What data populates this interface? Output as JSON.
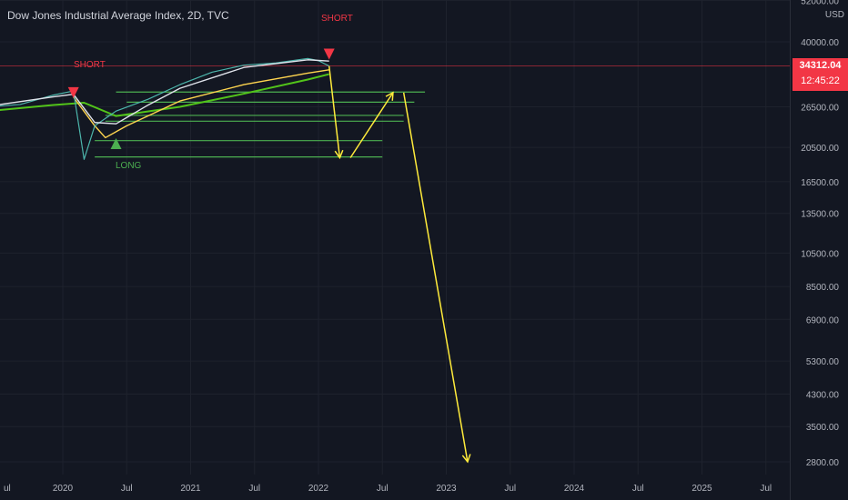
{
  "header": {
    "title": "Dow Jones Industrial Average Index, 2D, TVC"
  },
  "price_axis": {
    "currency": "USD",
    "ticks": [
      "52000.00",
      "40000.00",
      "26500.00",
      "20500.00",
      "16500.00",
      "13500.00",
      "10500.00",
      "8500.00",
      "6900.00",
      "5300.00",
      "4300.00",
      "3500.00",
      "2800.00"
    ]
  },
  "time_axis": {
    "ticks": [
      "ul",
      "2020",
      "Jul",
      "2021",
      "Jul",
      "2022",
      "Jul",
      "2023",
      "Jul",
      "2024",
      "Jul",
      "2025",
      "Jul"
    ]
  },
  "last_price": {
    "value": "34312.04",
    "countdown": "12:45:22"
  },
  "annotations": {
    "short_1": "SHORT",
    "short_2": "SHORT",
    "long_1": "LONG"
  },
  "colors": {
    "background": "#131722",
    "short": "#f23645",
    "long": "#4caf50",
    "forecast_arrows": "#ffeb3b",
    "support_lines": "#4caf50",
    "price_line": "#f23645"
  },
  "chart_data": {
    "type": "line",
    "title": "Dow Jones Industrial Average Index, 2D, TVC",
    "y_scale": "log",
    "ylim": [
      2500,
      56000
    ],
    "x_ticks": [
      "Jul",
      "2020",
      "Jul",
      "2021",
      "Jul",
      "2022",
      "Jul",
      "2023",
      "Jul",
      "2024",
      "Jul",
      "2025",
      "Jul"
    ],
    "price_series": [
      [
        "2019-06",
        26500
      ],
      [
        "2019-09",
        26900
      ],
      [
        "2019-12",
        28500
      ],
      [
        "2020-02",
        29300
      ],
      [
        "2020-03",
        19000
      ],
      [
        "2020-04",
        23500
      ],
      [
        "2020-06",
        25800
      ],
      [
        "2020-09",
        27800
      ],
      [
        "2020-12",
        30500
      ],
      [
        "2021-03",
        33000
      ],
      [
        "2021-06",
        34500
      ],
      [
        "2021-09",
        35000
      ],
      [
        "2021-12",
        36000
      ],
      [
        "2022-01",
        35500
      ],
      [
        "2022-02",
        34312
      ]
    ],
    "ma_white": [
      [
        "2019-06",
        26600
      ],
      [
        "2019-12",
        28200
      ],
      [
        "2020-02",
        28700
      ],
      [
        "2020-04",
        24000
      ],
      [
        "2020-06",
        23800
      ],
      [
        "2020-09",
        26800
      ],
      [
        "2020-12",
        29800
      ],
      [
        "2021-06",
        34000
      ],
      [
        "2021-12",
        35700
      ],
      [
        "2022-02",
        35400
      ]
    ],
    "ma_yellow": [
      [
        "2020-02",
        28200
      ],
      [
        "2020-04",
        23500
      ],
      [
        "2020-05",
        21800
      ],
      [
        "2020-07",
        23500
      ],
      [
        "2020-12",
        27500
      ],
      [
        "2021-06",
        30500
      ],
      [
        "2021-12",
        32800
      ],
      [
        "2022-02",
        33500
      ]
    ],
    "ma_green": [
      [
        "2019-06",
        25800
      ],
      [
        "2019-12",
        26800
      ],
      [
        "2020-03",
        27200
      ],
      [
        "2020-06",
        25000
      ],
      [
        "2020-12",
        26500
      ],
      [
        "2021-06",
        28800
      ],
      [
        "2021-12",
        31500
      ],
      [
        "2022-02",
        32600
      ]
    ],
    "support_levels": [
      {
        "price": 29100,
        "from": "2020-06",
        "to": "2022-11"
      },
      {
        "price": 27300,
        "from": "2020-07",
        "to": "2022-10"
      },
      {
        "price": 25100,
        "from": "2020-05",
        "to": "2022-09"
      },
      {
        "price": 24200,
        "from": "2020-05",
        "to": "2022-09"
      },
      {
        "price": 21400,
        "from": "2020-04",
        "to": "2022-07"
      },
      {
        "price": 19300,
        "from": "2020-04",
        "to": "2022-07"
      }
    ],
    "signals": [
      {
        "type": "short",
        "date": "2020-02",
        "price": 29000,
        "label": "SHORT"
      },
      {
        "type": "long",
        "date": "2020-06",
        "price": 21000,
        "label": "LONG"
      },
      {
        "type": "short",
        "date": "2022-02",
        "price": 37000,
        "label": "SHORT"
      }
    ],
    "forecast_path": [
      [
        "2022-02",
        34312
      ],
      [
        "2022-03",
        19200
      ],
      [
        "2022-04",
        19200
      ],
      [
        "2022-08",
        29000
      ],
      [
        "2022-09",
        29000
      ],
      [
        "2023-03",
        2800
      ]
    ],
    "last_price": 34312.04
  }
}
